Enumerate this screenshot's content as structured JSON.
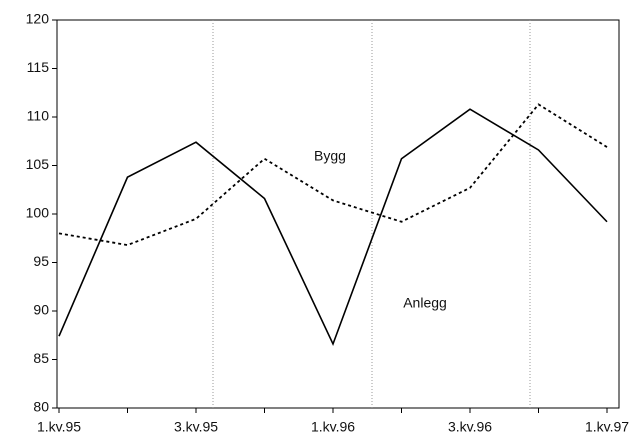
{
  "chart_data": {
    "type": "line",
    "categories": [
      "1.kv.95",
      null,
      "3.kv.95",
      null,
      "1.kv.96",
      null,
      "3.kv.96",
      null,
      "1.kv.97"
    ],
    "series": [
      {
        "name": "Anlegg",
        "color": "#000000",
        "dash": false,
        "values": [
          87.4,
          103.8,
          107.4,
          101.6,
          86.6,
          105.7,
          110.8,
          106.6,
          99.2
        ]
      },
      {
        "name": "Bygg",
        "color": "#000000",
        "dash": true,
        "values": [
          98.0,
          96.8,
          99.5,
          105.7,
          101.4,
          99.2,
          102.7,
          111.3,
          106.9
        ]
      }
    ],
    "ylim": [
      80,
      120
    ],
    "yticks": [
      80,
      85,
      90,
      95,
      100,
      105,
      110,
      115,
      120
    ]
  }
}
